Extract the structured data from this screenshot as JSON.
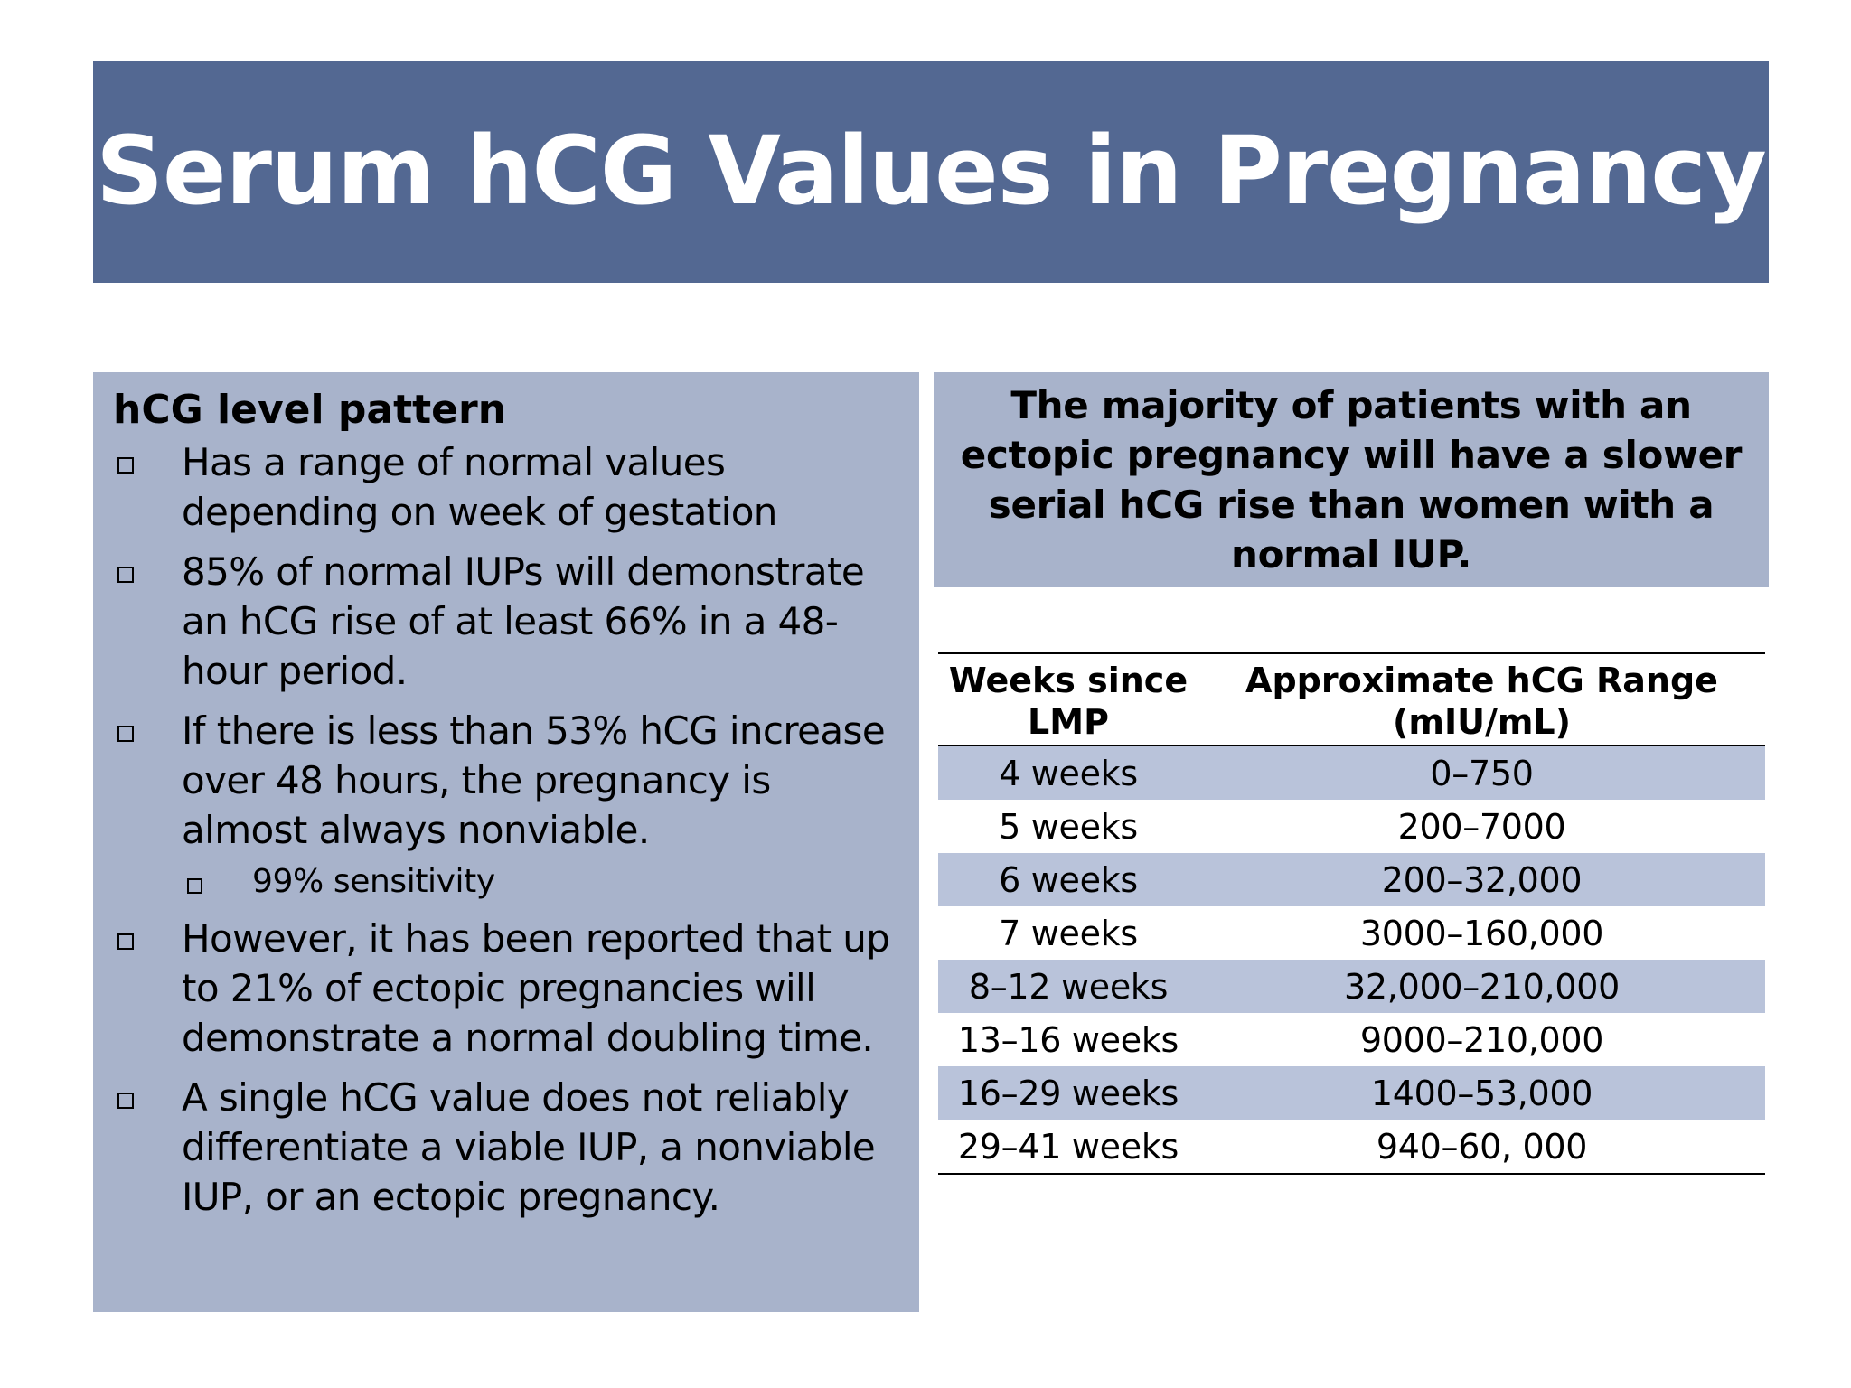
{
  "slide": {
    "title": "Serum hCG Values in Pregnancy"
  },
  "left_panel": {
    "heading": "hCG level pattern",
    "bullets": [
      "Has a range of normal values depending on week of gestation",
      "85% of normal IUPs will demonstrate an hCG rise of at least 66% in a 48-hour period.",
      "If there is less than 53% hCG increase over 48 hours, the pregnancy is almost always nonviable.",
      "However, it has been reported that up to 21% of ectopic pregnancies will demonstrate a normal doubling time.",
      "A single hCG value does not reliably differentiate a viable IUP, a nonviable IUP, or an ectopic pregnancy."
    ],
    "sub_bullet": "99% sensitivity"
  },
  "callout": {
    "text": "The majority of patients with an ectopic pregnancy will have a slower serial hCG rise than women with a normal IUP."
  },
  "table": {
    "headers": [
      "Weeks since LMP",
      "Approximate hCG Range (mIU/mL)"
    ],
    "rows": [
      [
        "4 weeks",
        "0–750"
      ],
      [
        "5 weeks",
        "200–7000"
      ],
      [
        "6 weeks",
        "200–32,000"
      ],
      [
        "7 weeks",
        "3000–160,000"
      ],
      [
        "8–12 weeks",
        "32,000–210,000"
      ],
      [
        "13–16 weeks",
        "9000–210,000"
      ],
      [
        "16–29 weeks",
        "1400–53,000"
      ],
      [
        "29–41 weeks",
        "940–60, 000"
      ]
    ]
  },
  "colors": {
    "title_bar": "#536892",
    "panel": "#a8b3cb",
    "table_shade": "#b9c3da"
  }
}
